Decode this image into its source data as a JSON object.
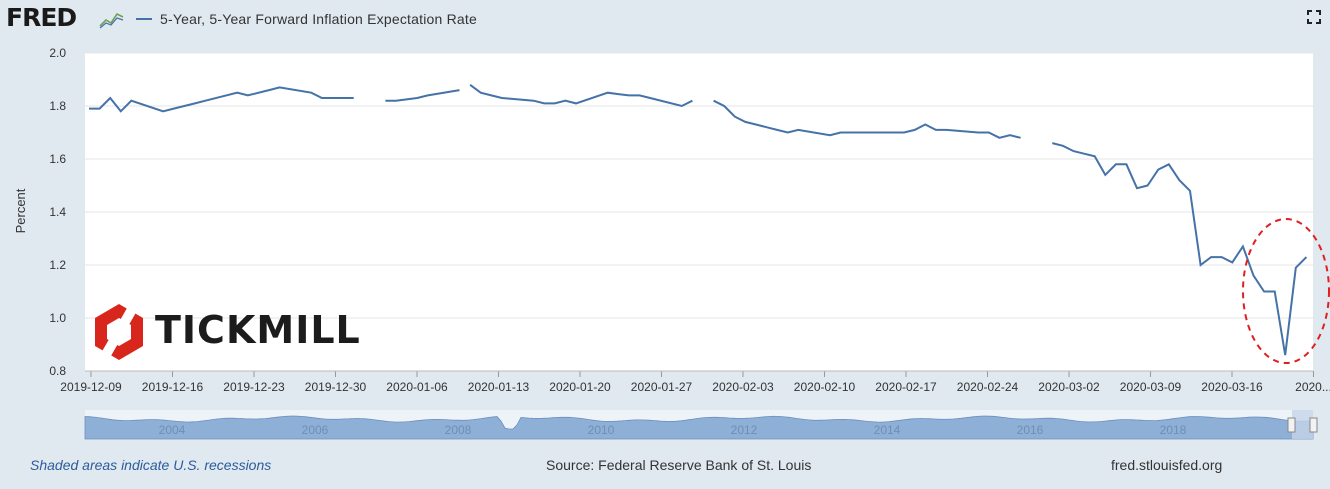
{
  "header": {
    "logo_text": "FRED",
    "series_title": "5-Year, 5-Year Forward Inflation Expectation Rate"
  },
  "footer": {
    "note": "Shaded areas indicate U.S. recessions",
    "source": "Source: Federal Reserve Bank of St. Louis",
    "site": "fred.stlouisfed.org"
  },
  "watermark": {
    "text": "TICKMILL",
    "color": "#d9261c"
  },
  "colors": {
    "line": "#4572a7",
    "annotation": "#e02020",
    "navigator_fill": "#8eb0d6"
  },
  "chart_data": {
    "type": "line",
    "ylabel": "Percent",
    "ylim": [
      0.8,
      2.0
    ],
    "yticks": [
      "0.8",
      "1.0",
      "1.2",
      "1.4",
      "1.6",
      "1.8",
      "2.0"
    ],
    "xticks": [
      "2019-12-09",
      "2019-12-16",
      "2019-12-23",
      "2019-12-30",
      "2020-01-06",
      "2020-01-13",
      "2020-01-20",
      "2020-01-27",
      "2020-02-03",
      "2020-02-10",
      "2020-02-17",
      "2020-02-24",
      "2020-03-02",
      "2020-03-09",
      "2020-03-16",
      "2020..."
    ],
    "xrange": [
      "2019-12-09",
      "2020-03-24"
    ],
    "grid": true,
    "legend": "top-left",
    "annotation": "dashed red ellipse around the March 2020 minimum",
    "series": [
      {
        "name": "5-Year, 5-Year Forward Inflation Expectation Rate",
        "points": [
          [
            "2019-12-09",
            1.79
          ],
          [
            "2019-12-10",
            1.79
          ],
          [
            "2019-12-11",
            1.83
          ],
          [
            "2019-12-12",
            1.78
          ],
          [
            "2019-12-13",
            1.82
          ],
          [
            "2019-12-16",
            1.78
          ],
          [
            "2019-12-17",
            1.79
          ],
          [
            "2019-12-18",
            1.8
          ],
          [
            "2019-12-19",
            1.81
          ],
          [
            "2019-12-20",
            1.82
          ],
          [
            "2019-12-23",
            1.85
          ],
          [
            "2019-12-24",
            1.84
          ],
          [
            "2019-12-26",
            1.86
          ],
          [
            "2019-12-27",
            1.87
          ],
          [
            "2019-12-30",
            1.85
          ],
          [
            "2019-12-31",
            1.83
          ],
          [
            "2020-01-02",
            1.83
          ],
          [
            "2020-01-03",
            1.83
          ],
          null,
          [
            "2020-01-06",
            1.82
          ],
          [
            "2020-01-07",
            1.82
          ],
          [
            "2020-01-09",
            1.83
          ],
          [
            "2020-01-10",
            1.84
          ],
          [
            "2020-01-13",
            1.86
          ],
          null,
          [
            "2020-01-14",
            1.88
          ],
          [
            "2020-01-15",
            1.85
          ],
          [
            "2020-01-16",
            1.84
          ],
          [
            "2020-01-17",
            1.83
          ],
          [
            "2020-01-20",
            1.82
          ],
          [
            "2020-01-21",
            1.81
          ],
          [
            "2020-01-22",
            1.81
          ],
          [
            "2020-01-23",
            1.82
          ],
          [
            "2020-01-24",
            1.81
          ],
          [
            "2020-01-27",
            1.85
          ],
          [
            "2020-01-28",
            1.845
          ],
          [
            "2020-01-29",
            1.84
          ],
          [
            "2020-01-30",
            1.84
          ],
          [
            "2020-01-31",
            1.83
          ],
          [
            "2020-02-03",
            1.8
          ],
          [
            "2020-02-04",
            1.82
          ],
          null,
          [
            "2020-02-06",
            1.82
          ],
          [
            "2020-02-07",
            1.8
          ],
          [
            "2020-02-08",
            1.76
          ],
          [
            "2020-02-09",
            1.74
          ],
          [
            "2020-02-10",
            1.73
          ],
          [
            "2020-02-11",
            1.72
          ],
          [
            "2020-02-12",
            1.71
          ],
          [
            "2020-02-13",
            1.7
          ],
          [
            "2020-02-14",
            1.71
          ],
          [
            "2020-02-17",
            1.69
          ],
          [
            "2020-02-18",
            1.7
          ],
          [
            "2020-02-19",
            1.7
          ],
          [
            "2020-02-20",
            1.7
          ],
          [
            "2020-02-21",
            1.7
          ],
          [
            "2020-02-24",
            1.7
          ],
          [
            "2020-02-25",
            1.71
          ],
          [
            "2020-02-26",
            1.73
          ],
          [
            "2020-02-27",
            1.71
          ],
          [
            "2020-02-28",
            1.71
          ],
          [
            "2020-03-02",
            1.7
          ],
          [
            "2020-03-03",
            1.7
          ],
          [
            "2020-03-04",
            1.68
          ],
          [
            "2020-03-05",
            1.69
          ],
          [
            "2020-03-06",
            1.68
          ],
          null,
          [
            "2020-03-09",
            1.66
          ],
          [
            "2020-03-10",
            1.65
          ],
          [
            "2020-03-11",
            1.63
          ],
          [
            "2020-03-12",
            1.62
          ],
          [
            "2020-03-13",
            1.61
          ],
          [
            "2020-03-14",
            1.54
          ],
          [
            "2020-03-15",
            1.58
          ],
          [
            "2020-03-16",
            1.58
          ],
          [
            "2020-03-17",
            1.49
          ],
          [
            "2020-03-18",
            1.5
          ],
          [
            "2020-03-19",
            1.56
          ],
          [
            "2020-03-20",
            1.58
          ],
          [
            "2020-03-21",
            1.52
          ],
          [
            "2020-03-22",
            1.48
          ],
          [
            "2020-03-23",
            1.2
          ],
          [
            "2020-03-24",
            1.23
          ],
          [
            "2020-03-25",
            1.23
          ],
          [
            "2020-03-26",
            1.21
          ],
          [
            "2020-03-27",
            1.27
          ],
          [
            "2020-03-28",
            1.16
          ],
          [
            "2020-03-29",
            1.1
          ],
          [
            "2020-03-30",
            1.1
          ],
          [
            "2020-03-31",
            0.86
          ],
          [
            "2020-04-01",
            1.19
          ],
          [
            "2020-04-02",
            1.23
          ]
        ]
      }
    ]
  },
  "navigator": {
    "years": [
      "2004",
      "2006",
      "2008",
      "2010",
      "2012",
      "2014",
      "2016",
      "2018"
    ]
  }
}
